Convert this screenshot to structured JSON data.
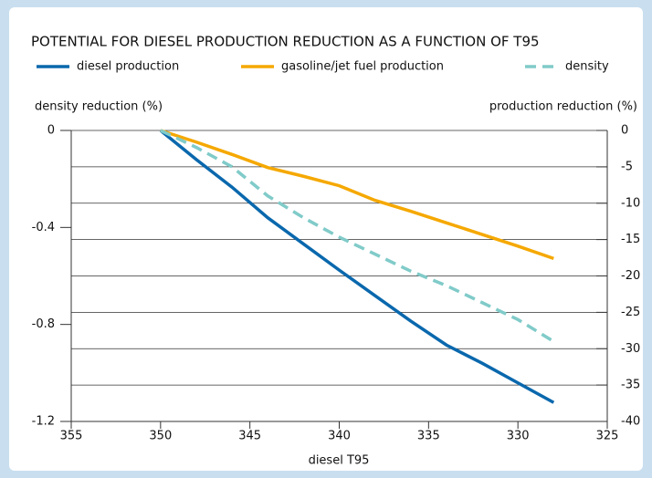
{
  "chart_data": {
    "type": "line",
    "title": "POTENTIAL FOR DIESEL PRODUCTION REDUCTION AS A FUNCTION OF T95",
    "x_label": "diesel T95",
    "y_label": "density reduction (%)",
    "y2_label": "production reduction (%)",
    "x": [
      350,
      348,
      346,
      344,
      342,
      340,
      338,
      336,
      334,
      332,
      330,
      328
    ],
    "series": [
      {
        "name": "diesel production",
        "color": "#0a68ad",
        "axis": "y2",
        "dashed": false,
        "values": [
          0,
          -4,
          -7.8,
          -12,
          -15.6,
          -19.2,
          -22.7,
          -26.2,
          -29.5,
          -32,
          -34.7,
          -37.4
        ]
      },
      {
        "name": "gasoline/jet fuel production",
        "color": "#f5a800",
        "axis": "y2",
        "dashed": false,
        "values": [
          0,
          -1.6,
          -3.3,
          -5.1,
          -6.3,
          -7.6,
          -9.6,
          -11.1,
          -12.7,
          -14.3,
          -15.9,
          -17.6
        ]
      },
      {
        "name": "density",
        "color": "#80cbc9",
        "axis": "y",
        "dashed": true,
        "values": [
          0,
          -0.07,
          -0.15,
          -0.27,
          -0.36,
          -0.44,
          -0.51,
          -0.58,
          -0.64,
          -0.71,
          -0.78,
          -0.87
        ]
      }
    ],
    "xlim": [
      355,
      325
    ],
    "xticks": [
      355,
      350,
      345,
      340,
      335,
      330,
      325
    ],
    "ylim": [
      -1.2,
      0
    ],
    "yticks": [
      0,
      -0.4,
      -0.8,
      -1.2
    ],
    "y2lim": [
      -40,
      0
    ],
    "y2ticks": [
      0,
      -5,
      -10,
      -15,
      -20,
      -25,
      -30,
      -35,
      -40
    ],
    "grid": true
  }
}
